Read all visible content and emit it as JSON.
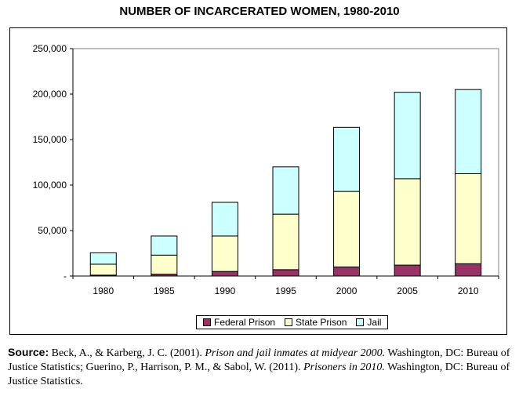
{
  "chart_data": {
    "type": "bar",
    "stacked": true,
    "title": "NUMBER OF INCARCERATED WOMEN, 1980-2010",
    "xlabel": "",
    "ylabel": "",
    "categories": [
      "1980",
      "1985",
      "1990",
      "1995",
      "2000",
      "2005",
      "2010"
    ],
    "series": [
      {
        "name": "Federal Prison",
        "color": "#993366",
        "values": [
          1000,
          2000,
          5000,
          7000,
          10000,
          12000,
          13500
        ]
      },
      {
        "name": "State Prison",
        "color": "#ffffcc",
        "values": [
          12000,
          21000,
          39000,
          61000,
          83000,
          95000,
          99000
        ]
      },
      {
        "name": "Jail",
        "color": "#ccffff",
        "values": [
          12500,
          21000,
          37000,
          52000,
          70500,
          95000,
          92500
        ]
      }
    ],
    "ylim": [
      0,
      250000
    ],
    "yticks": [
      {
        "value": 0,
        "label": "-"
      },
      {
        "value": 50000,
        "label": "50,000"
      },
      {
        "value": 100000,
        "label": "100,000"
      },
      {
        "value": 150000,
        "label": "150,000"
      },
      {
        "value": 200000,
        "label": "200,000"
      },
      {
        "value": 250000,
        "label": "250,000"
      }
    ],
    "plot_background": "#ffffff",
    "gridlines": false,
    "legend_position": "bottom-center"
  },
  "source": {
    "label": "Source:",
    "part1": " Beck, A., & Karberg, J. C. (2001). ",
    "title1": "Prison and jail inmates at midyear 2000.",
    "part2": " Washington, DC: Bureau of Justice Statistics; Guerino, P., Harrison, P. M., & Sabol, W. (2011). ",
    "title2": "Prisoners in 2010.",
    "part3": " Washington, DC: Bureau of Justice Statistics."
  }
}
